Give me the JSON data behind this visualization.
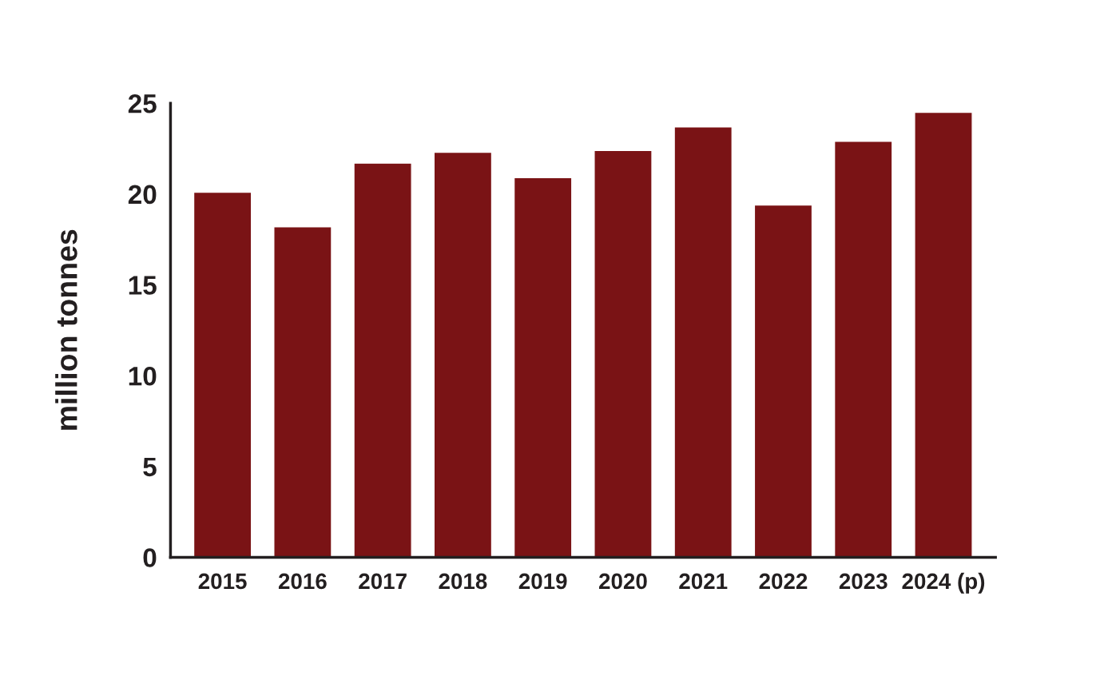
{
  "chart_data": {
    "type": "bar",
    "ylabel": "million tonnes",
    "categories": [
      "2015",
      "2016",
      "2017",
      "2018",
      "2019",
      "2020",
      "2021",
      "2022",
      "2023",
      "2024 (p)"
    ],
    "values": [
      20.1,
      18.2,
      21.7,
      22.3,
      20.9,
      22.4,
      23.7,
      19.4,
      22.9,
      24.5
    ],
    "color": "#7a1315",
    "ylim": [
      0,
      25
    ],
    "yticks": [
      0,
      5,
      10,
      15,
      20,
      25
    ],
    "grid": false
  }
}
